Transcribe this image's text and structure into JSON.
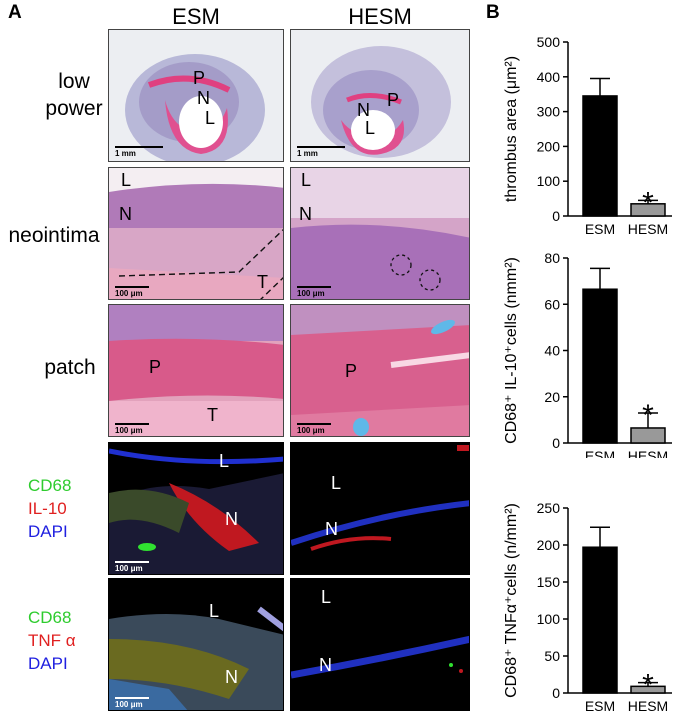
{
  "panels": {
    "A": {
      "letter": "A",
      "columns": [
        "ESM",
        "HESM"
      ],
      "rows": {
        "low_power": {
          "label_line1": "low",
          "label_line2": "power"
        },
        "neointima": {
          "label": "neointima"
        },
        "patch": {
          "label": "patch"
        }
      },
      "fluorescence_legend_1": [
        "CD68",
        "IL-10",
        "DAPI"
      ],
      "fluorescence_legend_2": [
        "CD68",
        "TNF α",
        "DAPI"
      ],
      "legend_colors": {
        "CD68": "#2ecc2e",
        "IL-10": "#e02020",
        "TNF": "#e02020",
        "DAPI": "#2020e0"
      },
      "scale_bars": {
        "low_power": "1 mm",
        "micro": "100 μm"
      },
      "tissue_letters": {
        "P": "P",
        "N": "N",
        "L": "L",
        "T": "T"
      }
    },
    "B": {
      "letter": "B"
    }
  },
  "chart_data": [
    {
      "type": "bar",
      "categories": [
        "ESM",
        "HESM"
      ],
      "values": [
        345,
        35
      ],
      "errors": [
        50,
        10
      ],
      "ylabel": "thrombus area (μm²)",
      "ylim": [
        0,
        500
      ],
      "yticks": [
        "0",
        "100",
        "200",
        "300",
        "400",
        "500"
      ],
      "significance": [
        "",
        "*"
      ],
      "colors": [
        "#000000",
        "#999999"
      ]
    },
    {
      "type": "bar",
      "categories": [
        "ESM",
        "HESM"
      ],
      "values": [
        66.5,
        6.5
      ],
      "errors": [
        9,
        6.5
      ],
      "ylabel": "CD68⁺ IL-10⁺cells (nmm²)",
      "ylim": [
        0,
        80
      ],
      "yticks": [
        "0",
        "20",
        "40",
        "60",
        "80"
      ],
      "significance": [
        "",
        "*"
      ],
      "colors": [
        "#000000",
        "#999999"
      ]
    },
    {
      "type": "bar",
      "categories": [
        "ESM",
        "HESM"
      ],
      "values": [
        197,
        9
      ],
      "errors": [
        27,
        5
      ],
      "ylabel": "CD68⁺ TNFα⁺cells (n/mm²)",
      "ylim": [
        0,
        250
      ],
      "yticks": [
        "0",
        "50",
        "100",
        "150",
        "200",
        "250"
      ],
      "significance": [
        "",
        "*"
      ],
      "colors": [
        "#000000",
        "#999999"
      ]
    }
  ]
}
